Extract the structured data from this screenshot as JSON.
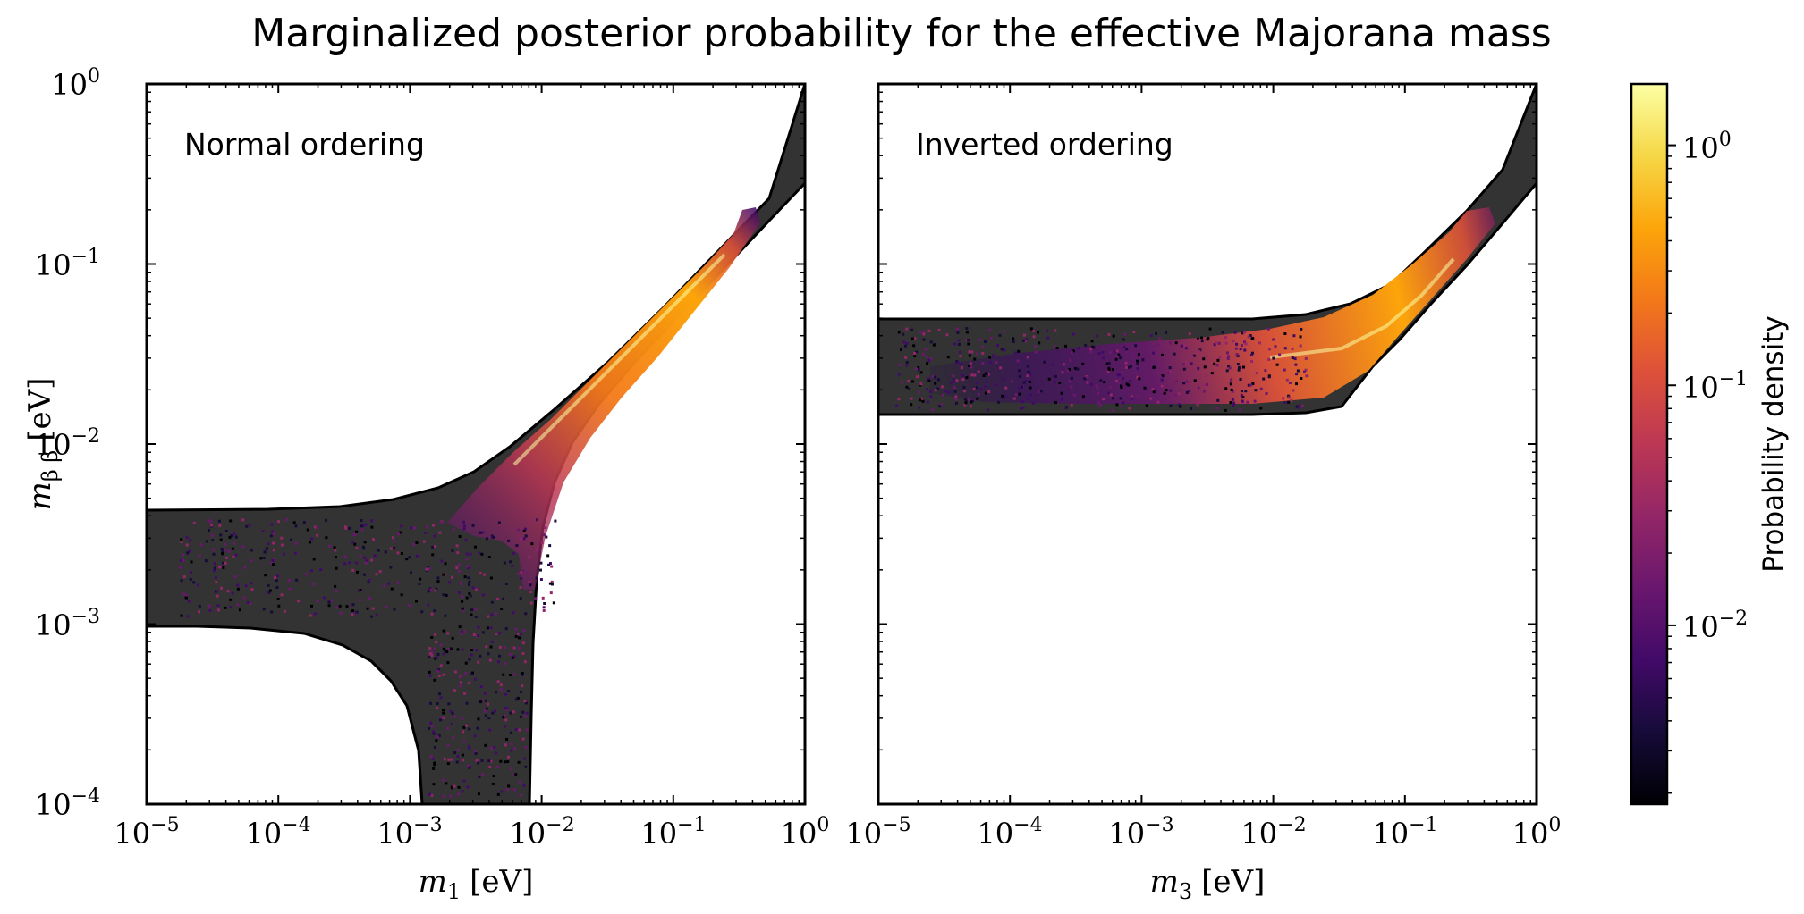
{
  "title": "Marginalized posterior probability for the effective Majorana mass",
  "colors": {
    "band": "#333333",
    "frame": "#000000",
    "colormap": "inferno"
  },
  "chart_data": [
    {
      "type": "heatmap",
      "panel": "left",
      "annotation": "Normal ordering",
      "x_quantity": "m",
      "x_sub": "1",
      "unit": "[eV]",
      "y_quantity": "m",
      "y_sub": "β β",
      "xscale": "log",
      "yscale": "log",
      "xlim": [
        1e-05,
        1
      ],
      "ylim": [
        0.0001,
        1
      ],
      "x_ticks": [
        {
          "base": "10",
          "exp": "−5"
        },
        {
          "base": "10",
          "exp": "−4"
        },
        {
          "base": "10",
          "exp": "−3"
        },
        {
          "base": "10",
          "exp": "−2"
        },
        {
          "base": "10",
          "exp": "−1"
        },
        {
          "base": "10",
          "exp": "0"
        }
      ],
      "y_ticks": [
        {
          "base": "10",
          "exp": "−4"
        },
        {
          "base": "10",
          "exp": "−3"
        },
        {
          "base": "10",
          "exp": "−2"
        },
        {
          "base": "10",
          "exp": "−1"
        },
        {
          "base": "10",
          "exp": "0"
        }
      ],
      "allowed_band": "normal",
      "posterior_peak_m": 0.1,
      "posterior_max_m": 0.3
    },
    {
      "type": "heatmap",
      "panel": "right",
      "annotation": "Inverted ordering",
      "x_quantity": "m",
      "x_sub": "3",
      "unit": "[eV]",
      "xscale": "log",
      "yscale": "log",
      "xlim": [
        1e-05,
        1
      ],
      "ylim": [
        0.0001,
        1
      ],
      "x_ticks": [
        {
          "base": "10",
          "exp": "−5"
        },
        {
          "base": "10",
          "exp": "−4"
        },
        {
          "base": "10",
          "exp": "−3"
        },
        {
          "base": "10",
          "exp": "−2"
        },
        {
          "base": "10",
          "exp": "−1"
        },
        {
          "base": "10",
          "exp": "0"
        }
      ],
      "allowed_band": "inverted",
      "band_plateau": [
        0.015,
        0.05
      ],
      "posterior_peak_m": 0.1,
      "posterior_max_m": 0.3
    },
    {
      "type": "colorbar",
      "label": "Probability density",
      "scale": "log",
      "range": [
        0.0018,
        1.8
      ],
      "ticks": [
        {
          "base": "10",
          "exp": "−2"
        },
        {
          "base": "10",
          "exp": "−1"
        },
        {
          "base": "10",
          "exp": "0"
        }
      ]
    }
  ]
}
